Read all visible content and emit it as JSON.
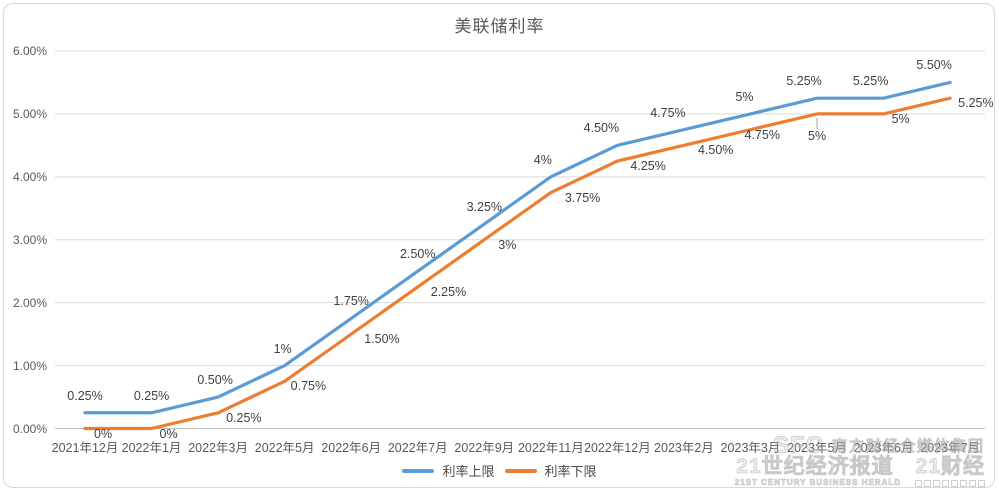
{
  "chart_data": {
    "type": "line",
    "title": "美联储利率",
    "categories": [
      "2021年12月",
      "2022年1月",
      "2022年3月",
      "2022年5月",
      "2022年6月",
      "2022年7月",
      "2022年9月",
      "2022年11月",
      "2022年12月",
      "2023年2月",
      "2023年3月",
      "2023年5月",
      "2023年6月",
      "2023年7月"
    ],
    "series": [
      {
        "name": "利率上限",
        "color": "#5B9BD5",
        "values": [
          0.25,
          0.25,
          0.5,
          1,
          1.75,
          2.5,
          3.25,
          4,
          4.5,
          4.75,
          5,
          5.25,
          5.25,
          5.5
        ],
        "labels": [
          "0.25%",
          "0.25%",
          "0.50%",
          "1%",
          "1.75%",
          "2.50%",
          "3.25%",
          "4%",
          "4.50%",
          "4.75%",
          "5%",
          "5.25%",
          "5.25%",
          "5.50%"
        ]
      },
      {
        "name": "利率下限",
        "color": "#ED7D31",
        "values": [
          0,
          0,
          0.25,
          0.75,
          1.5,
          2.25,
          3,
          3.75,
          4.25,
          4.5,
          4.75,
          5,
          5,
          5.25
        ],
        "labels": [
          "0%",
          "0%",
          "0.25%",
          "0.75%",
          "1.50%",
          "2.25%",
          "3%",
          "3.75%",
          "4.25%",
          "4.50%",
          "4.75%",
          "5%",
          "5%",
          "5.25%"
        ],
        "callout_index": 11
      }
    ],
    "y_ticks": [
      "6.00%",
      "5.00%",
      "4.00%",
      "3.00%",
      "2.00%",
      "1.00%",
      "0.00%"
    ],
    "ylim": [
      0,
      6
    ],
    "grid": true,
    "legend_position": "bottom"
  },
  "colors": {
    "grid": "#D9D9D9",
    "axis": "#BFBFBF",
    "axis_text": "#595959",
    "data_label_text": "#404040"
  },
  "watermark": {
    "logo": "SFC",
    "org": "南方财经全媒体集团",
    "brand": "21世纪经济报道",
    "brand2": "21财经",
    "tagline": "21ST CENTURY BUSINESS HERALD"
  }
}
